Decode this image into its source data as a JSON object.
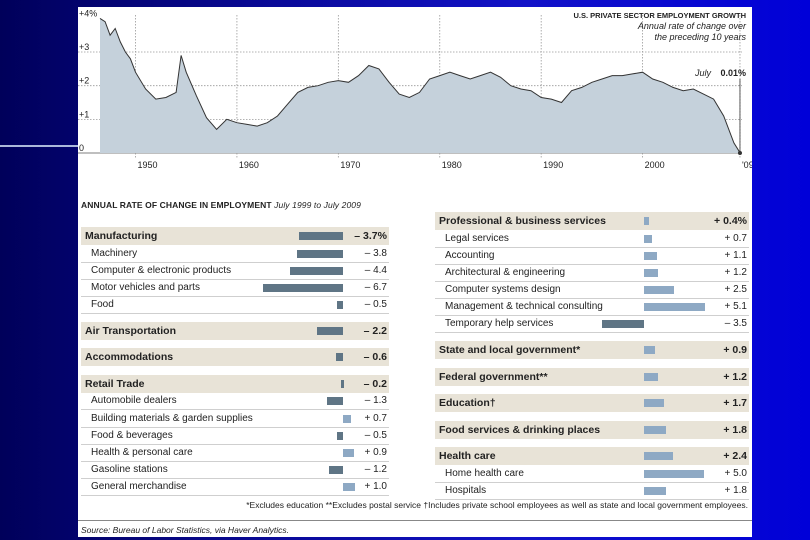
{
  "line_chart": {
    "type": "area",
    "title": "U.S. PRIVATE SECTOR EMPLOYMENT GROWTH",
    "subtitle_line1": "Annual rate of change over",
    "subtitle_line2": "the preceding 10 years",
    "y_ticks": [
      "+4%",
      "+3",
      "+2",
      "+1",
      "0"
    ],
    "y_tick_values": [
      4,
      3,
      2,
      1,
      0
    ],
    "x_ticks": [
      "1950",
      "1960",
      "1970",
      "1980",
      "1990",
      "2000",
      "'09"
    ],
    "x_tick_values": [
      1950,
      1960,
      1970,
      1980,
      1990,
      2000,
      2009.6
    ],
    "xlim": [
      1946.5,
      2009.8
    ],
    "ylim": [
      0,
      4.1
    ],
    "annotation_label": "July",
    "annotation_value": "0.01%",
    "x": [
      1946.5,
      1947,
      1947.5,
      1948,
      1948.5,
      1949,
      1949.5,
      1950,
      1951,
      1952,
      1953,
      1954,
      1954.5,
      1955,
      1956,
      1957,
      1958,
      1959,
      1960,
      1961,
      1962,
      1963,
      1964,
      1965,
      1966,
      1967,
      1968,
      1969,
      1970,
      1971,
      1972,
      1973,
      1974,
      1975,
      1976,
      1977,
      1978,
      1979,
      1980,
      1981,
      1982,
      1983,
      1984,
      1985,
      1986,
      1987,
      1988,
      1989,
      1990,
      1991,
      1992,
      1993,
      1994,
      1995,
      1996,
      1997,
      1998,
      1999,
      2000,
      2001,
      2002,
      2003,
      2004,
      2005,
      2006,
      2007,
      2008,
      2009,
      2009.6
    ],
    "y": [
      4.0,
      3.9,
      3.5,
      3.7,
      3.3,
      3.0,
      2.8,
      2.4,
      1.9,
      1.6,
      1.65,
      1.8,
      2.9,
      2.4,
      1.7,
      1.05,
      0.7,
      1.0,
      0.9,
      0.85,
      0.8,
      0.9,
      1.1,
      1.45,
      1.8,
      1.95,
      2.0,
      2.1,
      2.15,
      2.1,
      2.3,
      2.6,
      2.5,
      2.1,
      1.75,
      1.65,
      1.8,
      2.2,
      2.3,
      2.4,
      2.3,
      2.2,
      2.3,
      2.4,
      2.25,
      2.0,
      1.9,
      1.85,
      1.65,
      1.6,
      1.5,
      1.85,
      1.95,
      2.1,
      2.2,
      2.3,
      2.3,
      2.35,
      2.4,
      2.2,
      2.1,
      1.95,
      1.85,
      1.9,
      1.75,
      1.6,
      1.1,
      0.3,
      0.01
    ]
  },
  "table": {
    "heading": "ANNUAL RATE OF CHANGE IN EMPLOYMENT",
    "heading_period": "July 1999 to July 2009",
    "left_rows": [
      {
        "label": "Manufacturing",
        "value": "– 3.7%",
        "num": -3.7,
        "kind": "hdr"
      },
      {
        "label": "Machinery",
        "value": "– 3.8",
        "num": -3.8,
        "kind": "sub"
      },
      {
        "label": "Computer & electronic products",
        "value": "– 4.4",
        "num": -4.4,
        "kind": "sub"
      },
      {
        "label": "Motor vehicles and parts",
        "value": "– 6.7",
        "num": -6.7,
        "kind": "sub"
      },
      {
        "label": "Food",
        "value": "– 0.5",
        "num": -0.5,
        "kind": "sub"
      },
      {
        "label": "Air Transportation",
        "value": "– 2.2",
        "num": -2.2,
        "kind": "hdr"
      },
      {
        "label": "Accommodations",
        "value": "– 0.6",
        "num": -0.6,
        "kind": "hdr"
      },
      {
        "label": "Retail Trade",
        "value": "– 0.2",
        "num": -0.2,
        "kind": "hdr"
      },
      {
        "label": "Automobile dealers",
        "value": "– 1.3",
        "num": -1.3,
        "kind": "sub"
      },
      {
        "label": "Building materials & garden supplies",
        "value": "+ 0.7",
        "num": 0.7,
        "kind": "sub"
      },
      {
        "label": "Food & beverages",
        "value": "– 0.5",
        "num": -0.5,
        "kind": "sub"
      },
      {
        "label": "Health & personal care",
        "value": "+ 0.9",
        "num": 0.9,
        "kind": "sub"
      },
      {
        "label": "Gasoline stations",
        "value": "– 1.2",
        "num": -1.2,
        "kind": "sub"
      },
      {
        "label": "General merchandise",
        "value": "+ 1.0",
        "num": 1.0,
        "kind": "sub"
      }
    ],
    "right_rows": [
      {
        "label": "Professional & business services",
        "value": "+ 0.4%",
        "num": 0.4,
        "kind": "hdr"
      },
      {
        "label": "Legal services",
        "value": "+ 0.7",
        "num": 0.7,
        "kind": "sub"
      },
      {
        "label": "Accounting",
        "value": "+ 1.1",
        "num": 1.1,
        "kind": "sub"
      },
      {
        "label": "Architectural & engineering",
        "value": "+ 1.2",
        "num": 1.2,
        "kind": "sub"
      },
      {
        "label": "Computer systems design",
        "value": "+ 2.5",
        "num": 2.5,
        "kind": "sub"
      },
      {
        "label": "Management & technical consulting",
        "value": "+ 5.1",
        "num": 5.1,
        "kind": "sub"
      },
      {
        "label": "Temporary help services",
        "value": "– 3.5",
        "num": -3.5,
        "kind": "sub"
      },
      {
        "label": "State and local government*",
        "value": "+ 0.9",
        "num": 0.9,
        "kind": "hdr"
      },
      {
        "label": "Federal government**",
        "value": "+ 1.2",
        "num": 1.2,
        "kind": "hdr"
      },
      {
        "label": "Education†",
        "value": "+ 1.7",
        "num": 1.7,
        "kind": "hdr"
      },
      {
        "label": "Food services & drinking places",
        "value": "+ 1.8",
        "num": 1.8,
        "kind": "hdr"
      },
      {
        "label": "Health care",
        "value": "+ 2.4",
        "num": 2.4,
        "kind": "hdr"
      },
      {
        "label": "Home health care",
        "value": "+ 5.0",
        "num": 5.0,
        "kind": "sub"
      },
      {
        "label": "Hospitals",
        "value": "+ 1.8",
        "num": 1.8,
        "kind": "sub"
      }
    ]
  },
  "footnote": "*Excludes education  **Excludes postal service  †Includes private school employees as well as state and local government employees.",
  "source": "Source: Bureau of Labor Statistics, via Haver Analytics.",
  "colors": {
    "negative": "#5f7585",
    "positive": "#8ea9c4",
    "area": "#c5d1db",
    "header_bg": "#e8e3d7"
  }
}
